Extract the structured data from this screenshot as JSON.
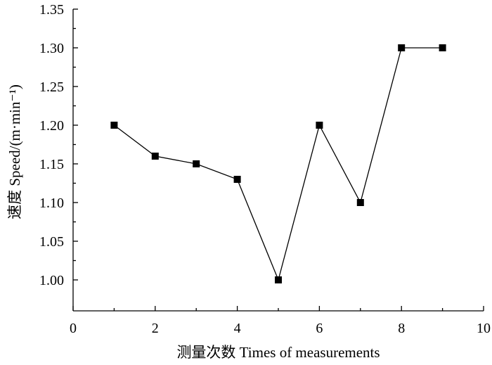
{
  "chart_data": {
    "type": "line",
    "xlabel": "测量次数 Times of measurements",
    "ylabel": "速度 Speed/(m·min⁻¹)",
    "xlim": [
      0,
      10
    ],
    "ylim": [
      0.96,
      1.35
    ],
    "x_ticks": [
      0,
      2,
      4,
      6,
      8,
      10
    ],
    "x_tick_labels": [
      "0",
      "2",
      "4",
      "6",
      "8",
      "10"
    ],
    "y_ticks": [
      1.0,
      1.05,
      1.1,
      1.15,
      1.2,
      1.25,
      1.3,
      1.35
    ],
    "y_tick_labels": [
      "1.00",
      "1.05",
      "1.10",
      "1.15",
      "1.20",
      "1.25",
      "1.30",
      "1.35"
    ],
    "grid": false,
    "marker": "square",
    "colors": {
      "line": "#000000",
      "marker": "#000000",
      "axis": "#000000"
    },
    "series": [
      {
        "x": [
          1,
          2,
          3,
          4,
          5,
          6,
          7,
          8,
          9
        ],
        "y": [
          1.2,
          1.16,
          1.15,
          1.13,
          1.0,
          1.2,
          1.1,
          1.3,
          1.3
        ]
      }
    ]
  }
}
